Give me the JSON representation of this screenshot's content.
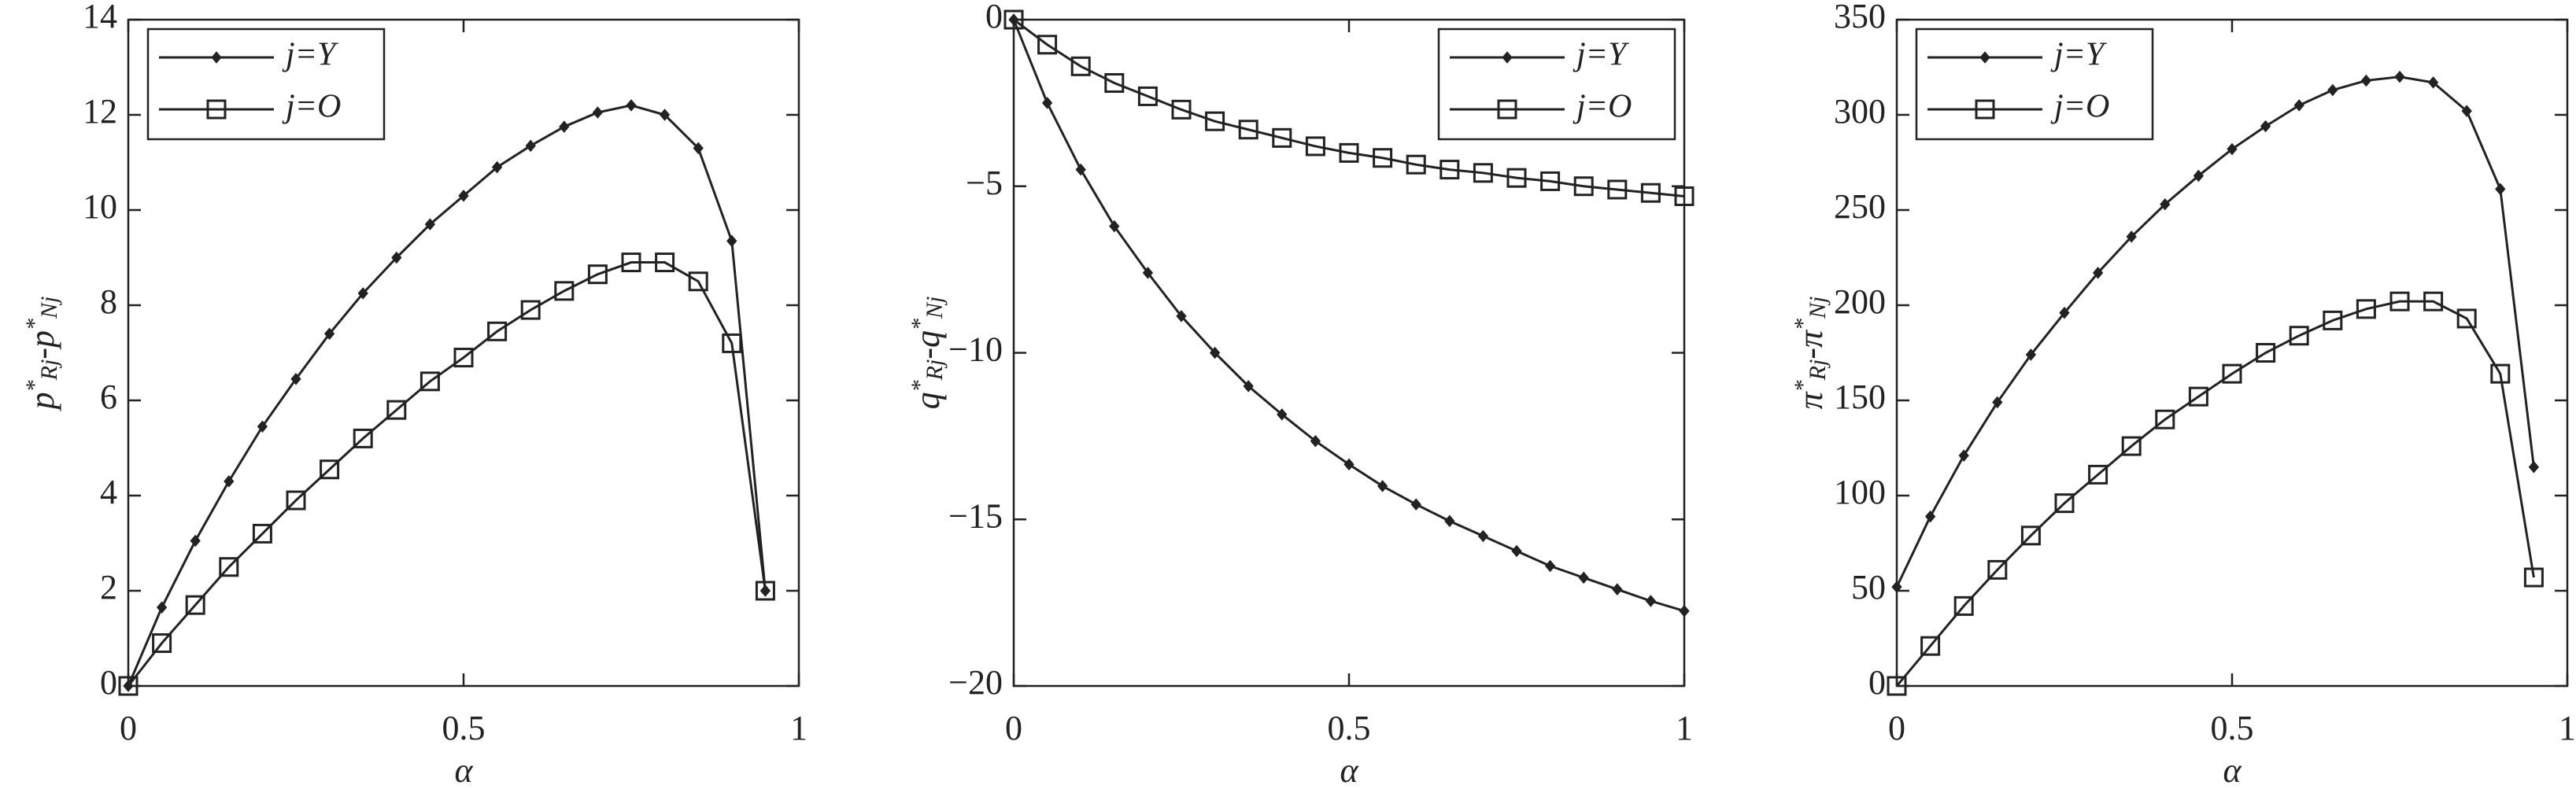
{
  "chart_data": [
    {
      "type": "line",
      "xlabel": "α",
      "ylabel": [
        {
          "text": "p",
          "pos": "base"
        },
        {
          "text": "*",
          "pos": "sup"
        },
        {
          "text": "Rj",
          "pos": "sub"
        },
        {
          "text": "-p",
          "pos": "base"
        },
        {
          "text": "*",
          "pos": "sup"
        },
        {
          "text": "Nj",
          "pos": "sub"
        }
      ],
      "x": [
        0,
        0.05,
        0.1,
        0.15,
        0.2,
        0.25,
        0.3,
        0.35,
        0.4,
        0.45,
        0.5,
        0.55,
        0.6,
        0.65,
        0.7,
        0.75,
        0.8,
        0.85,
        0.9,
        0.95
      ],
      "series": [
        {
          "name": "j=Y",
          "color": "#222222",
          "marker": "diamond",
          "values": [
            0,
            1.65,
            3.05,
            4.3,
            5.45,
            6.45,
            7.4,
            8.25,
            9.0,
            9.7,
            10.3,
            10.9,
            11.35,
            11.75,
            12.05,
            12.2,
            12.0,
            11.3,
            9.35,
            2.0
          ]
        },
        {
          "name": "j=O",
          "color": "#222222",
          "marker": "square",
          "values": [
            0,
            0.9,
            1.7,
            2.5,
            3.2,
            3.9,
            4.55,
            5.2,
            5.8,
            6.4,
            6.9,
            7.45,
            7.9,
            8.3,
            8.65,
            8.9,
            8.9,
            8.5,
            7.2,
            2.0
          ]
        }
      ],
      "xlim": [
        0,
        1
      ],
      "xticks": [
        0,
        0.5,
        1
      ],
      "ylim": [
        0,
        14
      ],
      "yticks": [
        0,
        2,
        4,
        6,
        8,
        10,
        12,
        14
      ],
      "legend": "upper left"
    },
    {
      "type": "line",
      "xlabel": "α",
      "ylabel": [
        {
          "text": "q",
          "pos": "base"
        },
        {
          "text": "*",
          "pos": "sup"
        },
        {
          "text": "Rj",
          "pos": "sub"
        },
        {
          "text": "-q",
          "pos": "base"
        },
        {
          "text": "*",
          "pos": "sup"
        },
        {
          "text": "Nj",
          "pos": "sub"
        }
      ],
      "x": [
        0,
        0.05,
        0.1,
        0.15,
        0.2,
        0.25,
        0.3,
        0.35,
        0.4,
        0.45,
        0.5,
        0.55,
        0.6,
        0.65,
        0.7,
        0.75,
        0.8,
        0.85,
        0.9,
        0.95,
        1
      ],
      "series": [
        {
          "name": "j=Y",
          "color": "#222222",
          "marker": "diamond",
          "values": [
            0,
            -2.5,
            -4.5,
            -6.2,
            -7.6,
            -8.9,
            -10.0,
            -11.0,
            -11.85,
            -12.65,
            -13.35,
            -14.0,
            -14.55,
            -15.05,
            -15.5,
            -15.95,
            -16.4,
            -16.75,
            -17.1,
            -17.45,
            -17.75
          ]
        },
        {
          "name": "j=O",
          "color": "#222222",
          "marker": "square",
          "values": [
            0,
            -0.75,
            -1.4,
            -1.9,
            -2.3,
            -2.7,
            -3.05,
            -3.3,
            -3.55,
            -3.8,
            -4.0,
            -4.15,
            -4.35,
            -4.5,
            -4.6,
            -4.75,
            -4.85,
            -5.0,
            -5.1,
            -5.2,
            -5.3
          ]
        }
      ],
      "xlim": [
        0,
        1
      ],
      "xticks": [
        0,
        0.5,
        1
      ],
      "ylim": [
        -20,
        0
      ],
      "yticks": [
        {
          "value": -20,
          "label": "−20"
        },
        {
          "value": -15,
          "label": "−15"
        },
        {
          "value": -10,
          "label": "−10"
        },
        {
          "value": -5,
          "label": "−5"
        },
        0
      ],
      "legend": "upper right"
    },
    {
      "type": "line",
      "xlabel": "α",
      "ylabel": [
        {
          "text": "π",
          "pos": "base"
        },
        {
          "text": "*",
          "pos": "sup"
        },
        {
          "text": "Rj",
          "pos": "sub"
        },
        {
          "text": "-π",
          "pos": "base"
        },
        {
          "text": "*",
          "pos": "sup"
        },
        {
          "text": "Nj",
          "pos": "sub"
        }
      ],
      "x": [
        0,
        0.05,
        0.1,
        0.15,
        0.2,
        0.25,
        0.3,
        0.35,
        0.4,
        0.45,
        0.5,
        0.55,
        0.6,
        0.65,
        0.7,
        0.75,
        0.8,
        0.85,
        0.9,
        0.95
      ],
      "series": [
        {
          "name": "j=Y",
          "color": "#222222",
          "marker": "diamond",
          "values": [
            52,
            89,
            121,
            149,
            174,
            196,
            217,
            236,
            253,
            268,
            282,
            294,
            305,
            313,
            318,
            320,
            317,
            302,
            261,
            115
          ]
        },
        {
          "name": "j=O",
          "color": "#222222",
          "marker": "square",
          "values": [
            0,
            21,
            42,
            61,
            79,
            96,
            111,
            126,
            140,
            152,
            164,
            175,
            184,
            192,
            198,
            202,
            202,
            193,
            164,
            57
          ]
        }
      ],
      "xlim": [
        0,
        1
      ],
      "xticks": [
        0,
        0.5,
        1
      ],
      "ylim": [
        0,
        350
      ],
      "yticks": [
        0,
        50,
        100,
        150,
        200,
        250,
        300,
        350
      ],
      "legend": "upper left"
    }
  ]
}
